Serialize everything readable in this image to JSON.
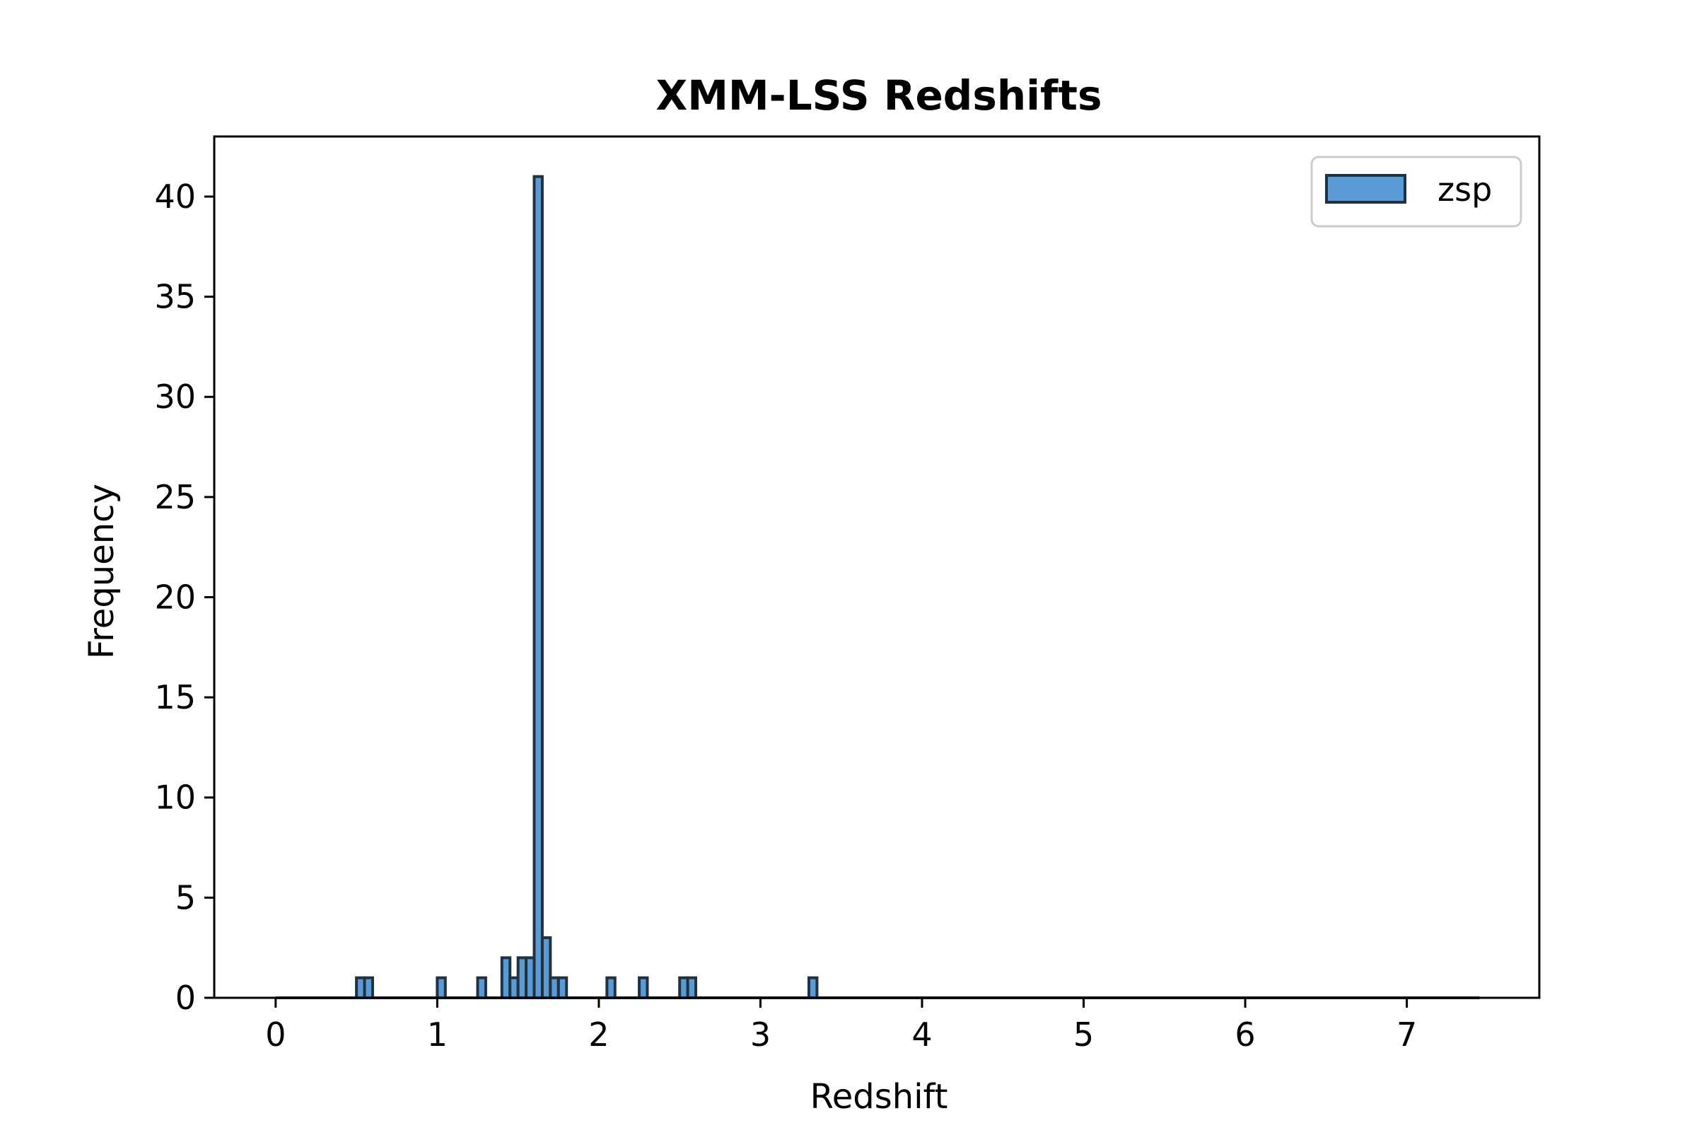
{
  "chart_data": {
    "type": "bar",
    "title": "XMM-LSS Redshifts",
    "xlabel": "Redshift",
    "ylabel": "Frequency",
    "xlim": [
      -0.38,
      7.82
    ],
    "ylim": [
      0,
      43
    ],
    "xticks": [
      0,
      1,
      2,
      3,
      4,
      5,
      6,
      7
    ],
    "yticks": [
      0,
      5,
      10,
      15,
      20,
      25,
      30,
      35,
      40
    ],
    "bin_width": 0.05,
    "grid": false,
    "legend_position": "top-right",
    "series": [
      {
        "name": "zsp",
        "color": "#5b9bd5",
        "edgecolor": "#22313f",
        "bins": [
          {
            "x0": 0.5,
            "count": 1
          },
          {
            "x0": 0.55,
            "count": 1
          },
          {
            "x0": 1.0,
            "count": 1
          },
          {
            "x0": 1.25,
            "count": 1
          },
          {
            "x0": 1.4,
            "count": 2
          },
          {
            "x0": 1.45,
            "count": 1
          },
          {
            "x0": 1.5,
            "count": 2
          },
          {
            "x0": 1.55,
            "count": 2
          },
          {
            "x0": 1.6,
            "count": 41
          },
          {
            "x0": 1.65,
            "count": 3
          },
          {
            "x0": 1.7,
            "count": 1
          },
          {
            "x0": 1.75,
            "count": 1
          },
          {
            "x0": 2.05,
            "count": 1
          },
          {
            "x0": 2.25,
            "count": 1
          },
          {
            "x0": 2.5,
            "count": 1
          },
          {
            "x0": 2.55,
            "count": 1
          },
          {
            "x0": 3.3,
            "count": 1
          }
        ],
        "range": [
          0,
          7.45
        ]
      }
    ]
  }
}
